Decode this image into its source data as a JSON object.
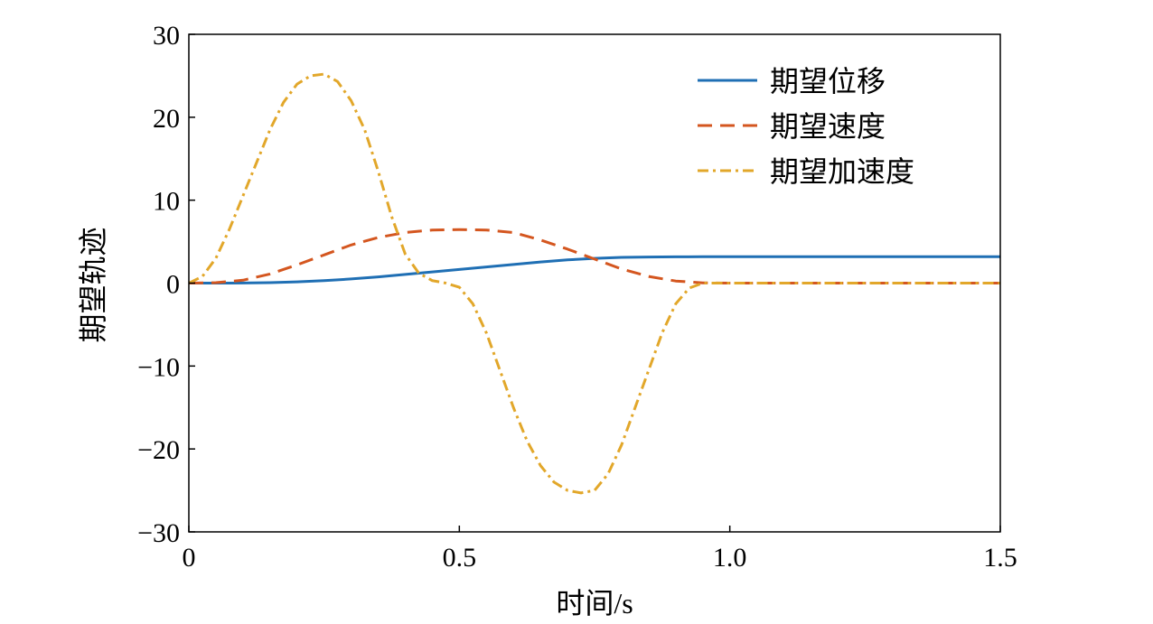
{
  "chart_data": {
    "type": "line",
    "title": "",
    "xlabel": "时间/s",
    "ylabel": "期望轨迹",
    "xlim": [
      0,
      1.5
    ],
    "ylim": [
      -30,
      30
    ],
    "xticks": [
      0,
      0.5,
      1.0,
      1.5
    ],
    "xtick_labels": [
      "0",
      "0.5",
      "1.0",
      "1.5"
    ],
    "yticks": [
      30,
      20,
      10,
      0,
      -10,
      -20,
      -30
    ],
    "ytick_labels": [
      "30",
      "20",
      "10",
      "0",
      "−10",
      "−20",
      "−30"
    ],
    "grid": false,
    "legend_position": "top-right",
    "series": [
      {
        "name": "期望位移",
        "color": "#1f6fb4",
        "style": "solid",
        "x": [
          0,
          0.05,
          0.1,
          0.15,
          0.2,
          0.25,
          0.3,
          0.35,
          0.4,
          0.45,
          0.5,
          0.55,
          0.6,
          0.65,
          0.7,
          0.75,
          0.8,
          0.85,
          0.9,
          0.95,
          1.0,
          1.1,
          1.2,
          1.3,
          1.4,
          1.5
        ],
        "y": [
          0,
          0.0,
          0.01,
          0.05,
          0.15,
          0.3,
          0.5,
          0.75,
          1.05,
          1.35,
          1.65,
          1.95,
          2.25,
          2.55,
          2.8,
          2.98,
          3.1,
          3.15,
          3.17,
          3.18,
          3.18,
          3.18,
          3.18,
          3.18,
          3.18,
          3.18
        ]
      },
      {
        "name": "期望速度",
        "color": "#d4561f",
        "style": "dashed",
        "x": [
          0,
          0.05,
          0.1,
          0.15,
          0.2,
          0.25,
          0.3,
          0.35,
          0.4,
          0.45,
          0.5,
          0.55,
          0.6,
          0.65,
          0.7,
          0.75,
          0.8,
          0.85,
          0.9,
          0.95,
          1.0,
          1.1,
          1.2,
          1.3,
          1.4,
          1.5
        ],
        "y": [
          0,
          0.05,
          0.35,
          1.1,
          2.2,
          3.4,
          4.6,
          5.5,
          6.1,
          6.4,
          6.45,
          6.4,
          6.1,
          5.2,
          4.1,
          2.9,
          1.7,
          0.8,
          0.25,
          0.03,
          0,
          0,
          0,
          0,
          0,
          0
        ]
      },
      {
        "name": "期望加速度",
        "color": "#e2a72a",
        "style": "dashdot",
        "x": [
          0,
          0.025,
          0.05,
          0.075,
          0.1,
          0.125,
          0.15,
          0.175,
          0.2,
          0.225,
          0.25,
          0.275,
          0.3,
          0.325,
          0.35,
          0.375,
          0.4,
          0.425,
          0.45,
          0.475,
          0.5,
          0.525,
          0.55,
          0.575,
          0.6,
          0.625,
          0.65,
          0.675,
          0.7,
          0.725,
          0.75,
          0.775,
          0.8,
          0.825,
          0.85,
          0.875,
          0.9,
          0.925,
          0.95,
          0.975,
          1.0,
          1.1,
          1.2,
          1.3,
          1.4,
          1.5
        ],
        "y": [
          0,
          0.8,
          3.0,
          6.5,
          10.5,
          14.5,
          18.5,
          21.8,
          24.0,
          25.0,
          25.2,
          24.3,
          22.0,
          18.5,
          13.5,
          8.0,
          3.5,
          1.2,
          0.3,
          0,
          -0.5,
          -2.5,
          -6.0,
          -10.5,
          -15.0,
          -19.0,
          -22.0,
          -24.0,
          -25.0,
          -25.3,
          -25.0,
          -23.0,
          -19.5,
          -15.0,
          -10.5,
          -6.0,
          -2.5,
          -0.6,
          0,
          0,
          0,
          0,
          0,
          0,
          0,
          0
        ]
      }
    ]
  }
}
